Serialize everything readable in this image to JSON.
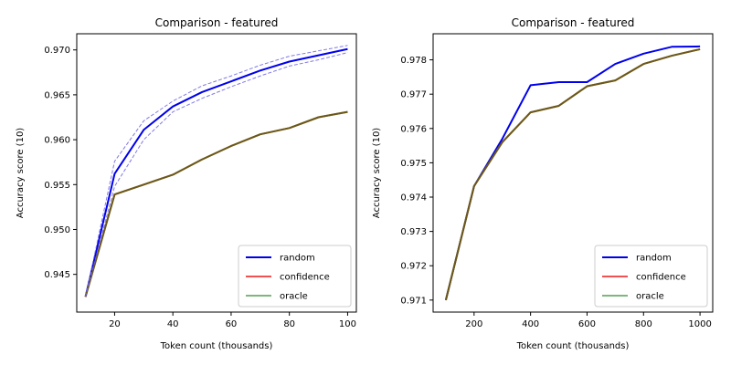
{
  "chart_data": [
    {
      "type": "line",
      "title": "Comparison - featured",
      "xlabel": "Token count (thousands)",
      "ylabel": "Accuracy score (10)",
      "xlim": [
        7,
        103
      ],
      "ylim": [
        0.9408,
        0.9718
      ],
      "xticks": [
        20,
        40,
        60,
        80,
        100
      ],
      "xtick_labels": [
        "20",
        "40",
        "60",
        "80",
        "100"
      ],
      "yticks": [
        0.945,
        0.95,
        0.955,
        0.96,
        0.965,
        0.97
      ],
      "ytick_labels": [
        "0.945",
        "0.950",
        "0.955",
        "0.960",
        "0.965",
        "0.970"
      ],
      "grid": false,
      "legend_position": "lower right",
      "x": [
        10,
        20,
        30,
        40,
        50,
        60,
        70,
        80,
        90,
        100
      ],
      "series": [
        {
          "name": "random",
          "color": "#0000ee",
          "values": [
            0.9425,
            0.9562,
            0.9611,
            0.9637,
            0.9653,
            0.9665,
            0.9677,
            0.9687,
            0.9694,
            0.9701
          ]
        },
        {
          "name": "confidence",
          "color": "#ee3333",
          "values": [
            0.9425,
            0.9539,
            0.955,
            0.9561,
            0.9578,
            0.9593,
            0.9606,
            0.9613,
            0.9625,
            0.9631
          ]
        },
        {
          "name": "oracle",
          "color": "#66aa66",
          "values": [
            0.9425,
            0.9539,
            0.955,
            0.9561,
            0.9578,
            0.9593,
            0.9606,
            0.9613,
            0.9625,
            0.9631
          ]
        }
      ],
      "bands": [
        {
          "color": "#6b63e0",
          "upper": [
            0.9425,
            0.9576,
            0.9621,
            0.9643,
            0.966,
            0.9671,
            0.9683,
            0.9693,
            0.9699,
            0.9705
          ],
          "lower": [
            0.9425,
            0.9548,
            0.96,
            0.9631,
            0.9646,
            0.9659,
            0.9671,
            0.9682,
            0.9689,
            0.9697
          ]
        }
      ],
      "overlap_color": "#6b5818"
    },
    {
      "type": "line",
      "title": "Comparison - featured",
      "xlabel": "Token count (thousands)",
      "ylabel": "Accuracy score (10)",
      "xlim": [
        55,
        1045
      ],
      "ylim": [
        0.97065,
        0.97876
      ],
      "xticks": [
        200,
        400,
        600,
        800,
        1000
      ],
      "xtick_labels": [
        "200",
        "400",
        "600",
        "800",
        "1000"
      ],
      "yticks": [
        0.971,
        0.972,
        0.973,
        0.974,
        0.975,
        0.976,
        0.977,
        0.978
      ],
      "ytick_labels": [
        "0.971",
        "0.972",
        "0.973",
        "0.974",
        "0.975",
        "0.976",
        "0.977",
        "0.978"
      ],
      "grid": false,
      "legend_position": "lower right",
      "x": [
        100,
        200,
        300,
        400,
        500,
        600,
        700,
        800,
        900,
        1000
      ],
      "series": [
        {
          "name": "random",
          "color": "#0000ee",
          "values": [
            0.971,
            0.97432,
            0.9757,
            0.97726,
            0.97735,
            0.97735,
            0.97788,
            0.97818,
            0.97838,
            0.97839
          ]
        },
        {
          "name": "confidence",
          "color": "#ee3333",
          "values": [
            0.971,
            0.97432,
            0.9756,
            0.97647,
            0.97666,
            0.97723,
            0.9774,
            0.97788,
            0.97812,
            0.97831
          ]
        },
        {
          "name": "oracle",
          "color": "#66aa66",
          "values": [
            0.971,
            0.97432,
            0.9756,
            0.97647,
            0.97666,
            0.97723,
            0.9774,
            0.97788,
            0.97812,
            0.97831
          ]
        }
      ],
      "bands": [],
      "overlap_color": "#6b5818"
    }
  ]
}
